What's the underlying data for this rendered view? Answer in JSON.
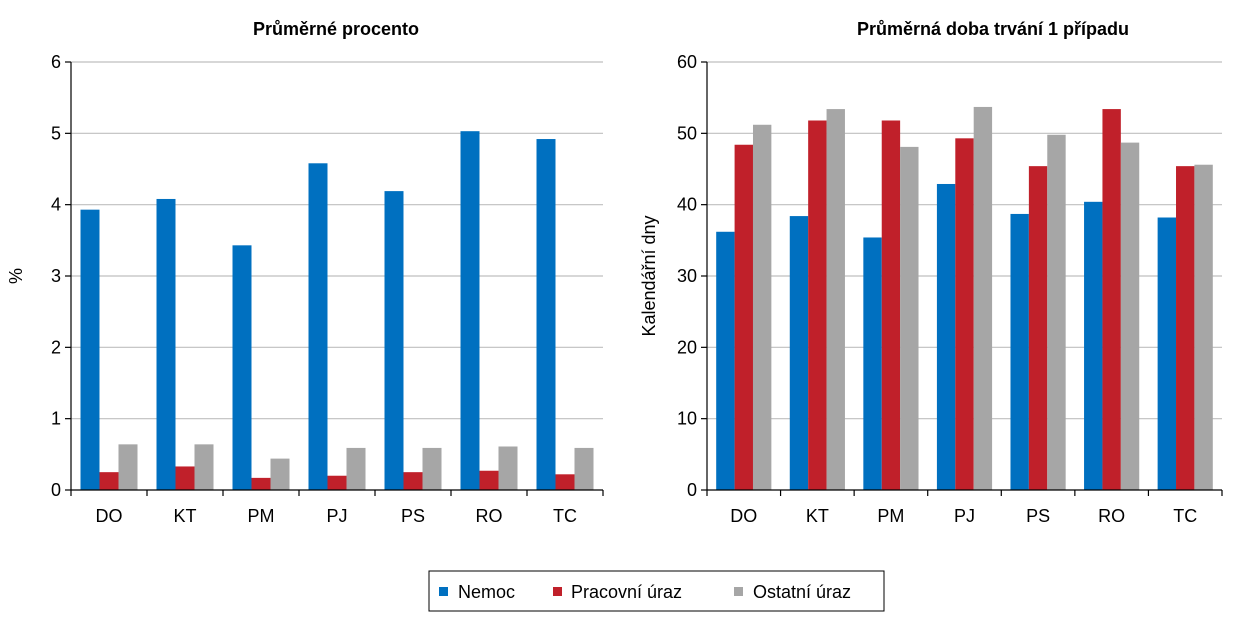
{
  "legend": {
    "items": [
      {
        "label": "Nemoc",
        "color": "#0070C0"
      },
      {
        "label": "Pracovní úraz",
        "color": "#C0202A"
      },
      {
        "label": "Ostatní úraz",
        "color": "#A6A6A6"
      }
    ]
  },
  "chart_data": [
    {
      "type": "bar",
      "title": "Průměrné procento",
      "xlabel": "",
      "ylabel": "%",
      "ylim": [
        0,
        6
      ],
      "yticks": [
        "0",
        "1",
        "2",
        "3",
        "4",
        "5",
        "6"
      ],
      "grid": true,
      "categories": [
        "DO",
        "KT",
        "PM",
        "PJ",
        "PS",
        "RO",
        "TC"
      ],
      "series": [
        {
          "name": "Nemoc",
          "color": "#0070C0",
          "values": [
            3.93,
            4.08,
            3.43,
            4.58,
            4.19,
            5.03,
            4.92
          ]
        },
        {
          "name": "Pracovní úraz",
          "color": "#C0202A",
          "values": [
            0.25,
            0.33,
            0.17,
            0.2,
            0.25,
            0.27,
            0.22
          ]
        },
        {
          "name": "Ostatní úraz",
          "color": "#A6A6A6",
          "values": [
            0.64,
            0.64,
            0.44,
            0.59,
            0.59,
            0.61,
            0.59
          ]
        }
      ]
    },
    {
      "type": "bar",
      "title": "Průměrná doba trvání 1 případu",
      "xlabel": "",
      "ylabel": "Kalendářní dny",
      "ylim": [
        0,
        60
      ],
      "yticks": [
        "0",
        "10",
        "20",
        "30",
        "40",
        "50",
        "60"
      ],
      "grid": true,
      "categories": [
        "DO",
        "KT",
        "PM",
        "PJ",
        "PS",
        "RO",
        "TC"
      ],
      "series": [
        {
          "name": "Nemoc",
          "color": "#0070C0",
          "values": [
            36.2,
            38.4,
            35.4,
            42.9,
            38.7,
            40.4,
            38.2
          ]
        },
        {
          "name": "Pracovní úraz",
          "color": "#C0202A",
          "values": [
            48.4,
            51.8,
            51.8,
            49.3,
            45.4,
            53.4,
            45.4
          ]
        },
        {
          "name": "Ostatní úraz",
          "color": "#A6A6A6",
          "values": [
            51.2,
            53.4,
            48.1,
            53.7,
            49.8,
            48.7,
            45.6
          ]
        }
      ]
    }
  ]
}
